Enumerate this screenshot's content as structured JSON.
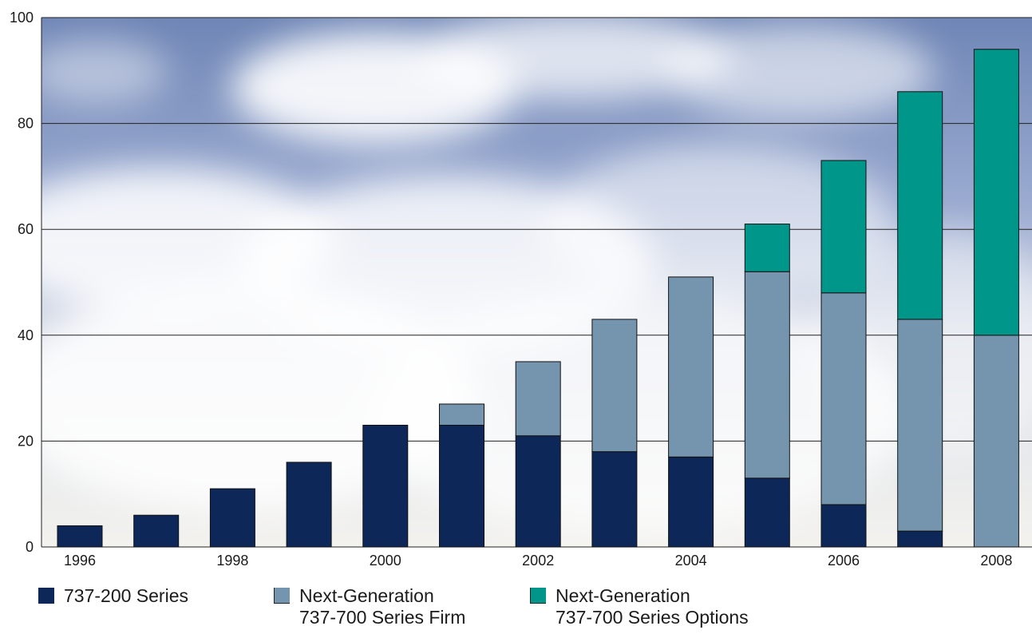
{
  "chart_data": {
    "type": "bar",
    "stacked": true,
    "categories": [
      "1996",
      "1997",
      "1998",
      "1999",
      "2000",
      "2001",
      "2002",
      "2003",
      "2004",
      "2005",
      "2006",
      "2007",
      "2008"
    ],
    "x_tick_labels": [
      "1996",
      "1998",
      "2000",
      "2002",
      "2004",
      "2006",
      "2008"
    ],
    "series": [
      {
        "name": "737-200 Series",
        "color": "#0c2758",
        "values": [
          4,
          6,
          11,
          16,
          23,
          23,
          21,
          18,
          17,
          13,
          8,
          3,
          0
        ]
      },
      {
        "name": "Next-Generation 737-700 Series Firm",
        "color": "#7595ae",
        "values": [
          0,
          0,
          0,
          0,
          0,
          4,
          14,
          25,
          34,
          39,
          40,
          40,
          40
        ]
      },
      {
        "name": "Next-Generation 737-700 Series Options",
        "color": "#00968a",
        "values": [
          0,
          0,
          0,
          0,
          0,
          0,
          0,
          0,
          0,
          9,
          25,
          43,
          54
        ]
      }
    ],
    "ylim": [
      0,
      100
    ],
    "y_ticks": [
      0,
      20,
      40,
      60,
      80,
      100
    ],
    "grid": true,
    "legend_position": "bottom",
    "background": "sky-with-clouds"
  },
  "legend": [
    {
      "line1": "737-200 Series",
      "line2": ""
    },
    {
      "line1": "Next-Generation",
      "line2": "737-700 Series Firm"
    },
    {
      "line1": "Next-Generation",
      "line2": "737-700 Series Options"
    }
  ]
}
